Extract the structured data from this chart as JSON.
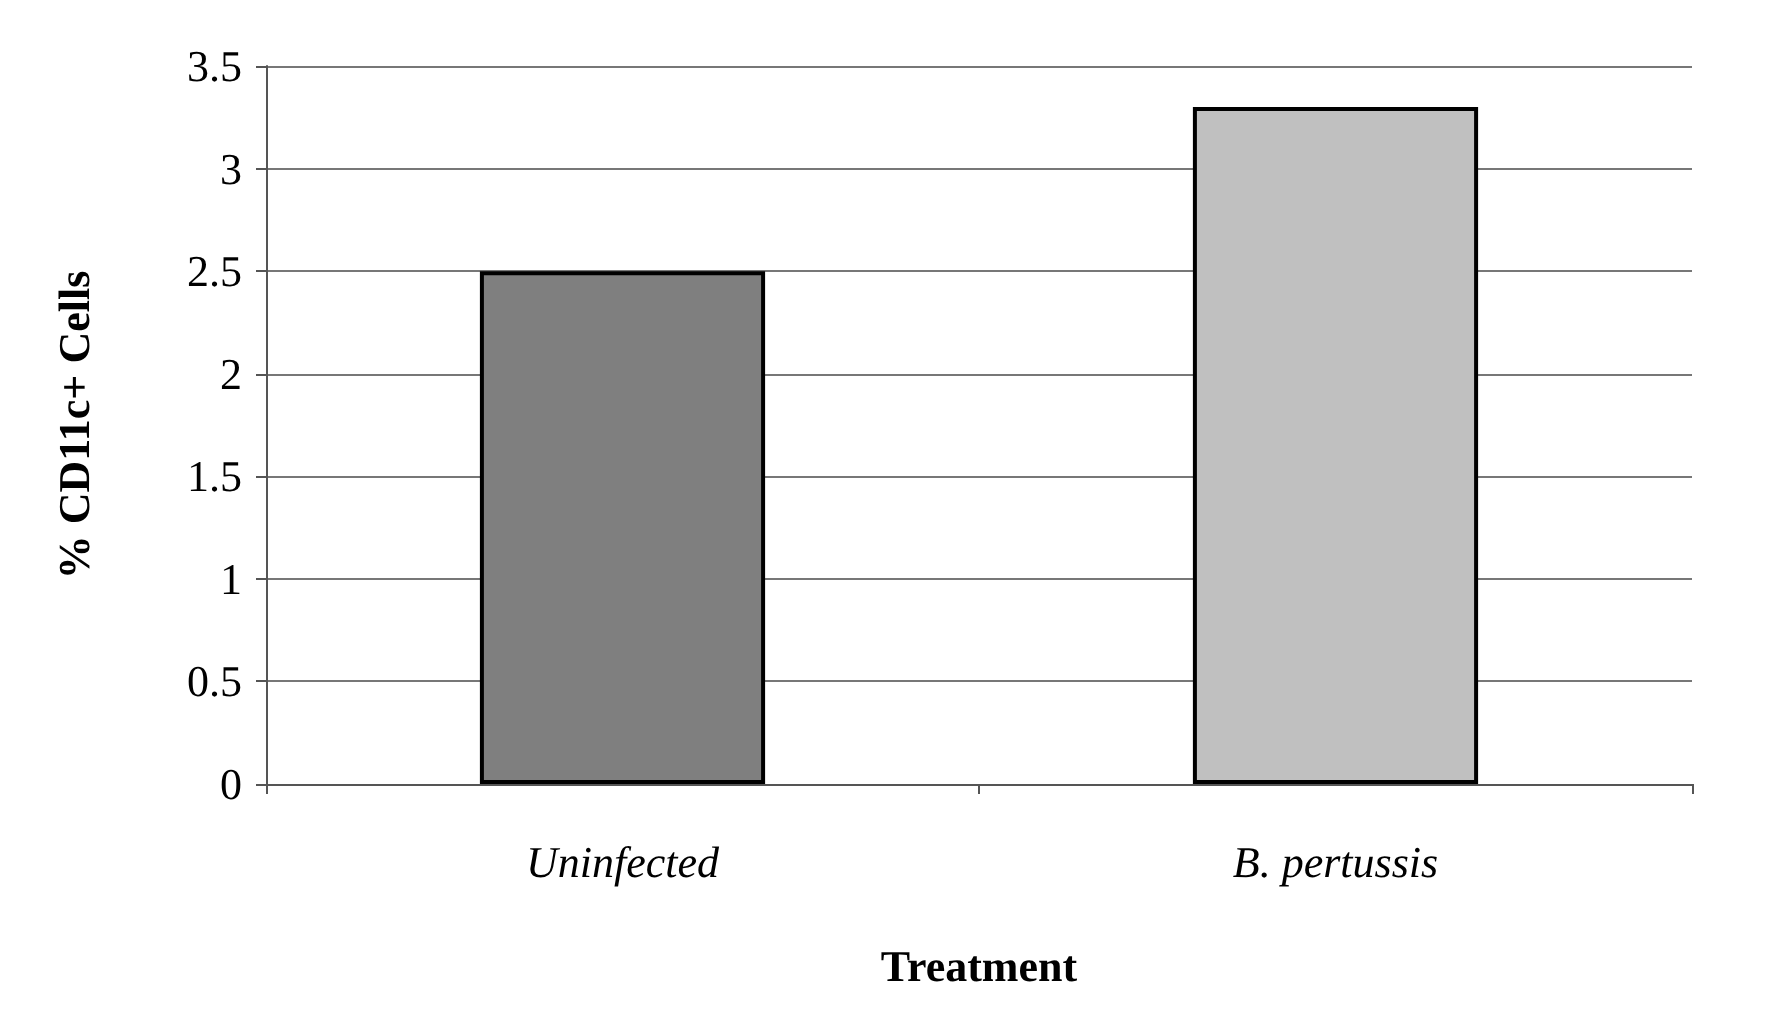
{
  "chart_data": {
    "type": "bar",
    "xlabel": "Treatment",
    "ylabel": "% CD11c+ Cells",
    "categories": [
      "Uninfected",
      "B. pertussis"
    ],
    "values": [
      2.5,
      3.3
    ],
    "colors": [
      "#7f7f7f",
      "#c0c0c0"
    ],
    "ylim": [
      0,
      3.5
    ],
    "yticks": [
      0,
      0.5,
      1,
      1.5,
      2,
      2.5,
      3,
      3.5
    ],
    "grid": "y"
  }
}
